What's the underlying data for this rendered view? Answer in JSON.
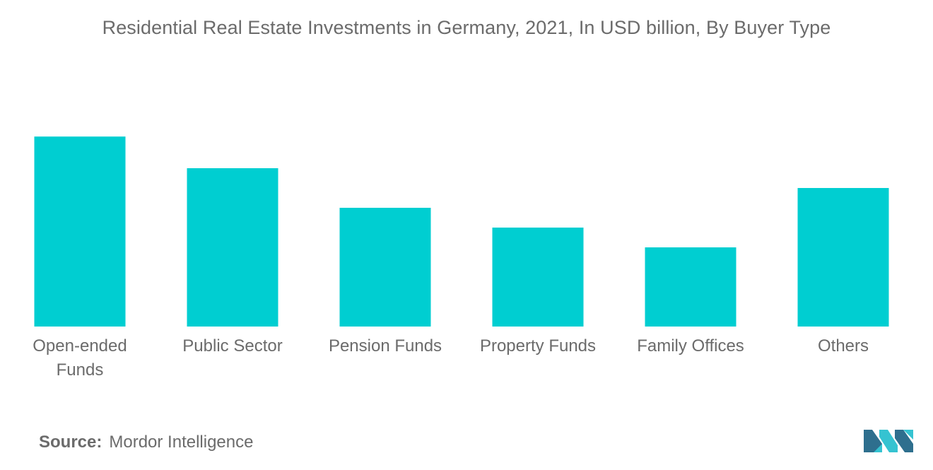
{
  "page_title": "Residential Real Estate Investments in Germany, 2021, In USD billion, By Buyer Type",
  "source": {
    "label": "Source:",
    "value": "Mordor Intelligence"
  },
  "logo_icon": "mordor-intelligence-logo-icon",
  "colors": {
    "bar": "#00CED1",
    "text": "#6b6b6b",
    "logo_dark": "#2e6f8e",
    "logo_light": "#35c3d1"
  },
  "chart_data": {
    "type": "bar",
    "title": "Residential Real Estate Investments in Germany, 2021, In USD billion, By Buyer Type",
    "xlabel": "",
    "ylabel": "",
    "categories": [
      [
        "Open-ended",
        "Funds"
      ],
      [
        "Public Sector"
      ],
      [
        "Pension Funds"
      ],
      [
        "Property Funds"
      ],
      [
        "Family Offices"
      ],
      [
        "Others"
      ]
    ],
    "values": [
      9.6,
      8.0,
      6.0,
      5.0,
      4.0,
      7.0
    ],
    "ylim": [
      0,
      10
    ],
    "grid": false,
    "legend": "none"
  }
}
